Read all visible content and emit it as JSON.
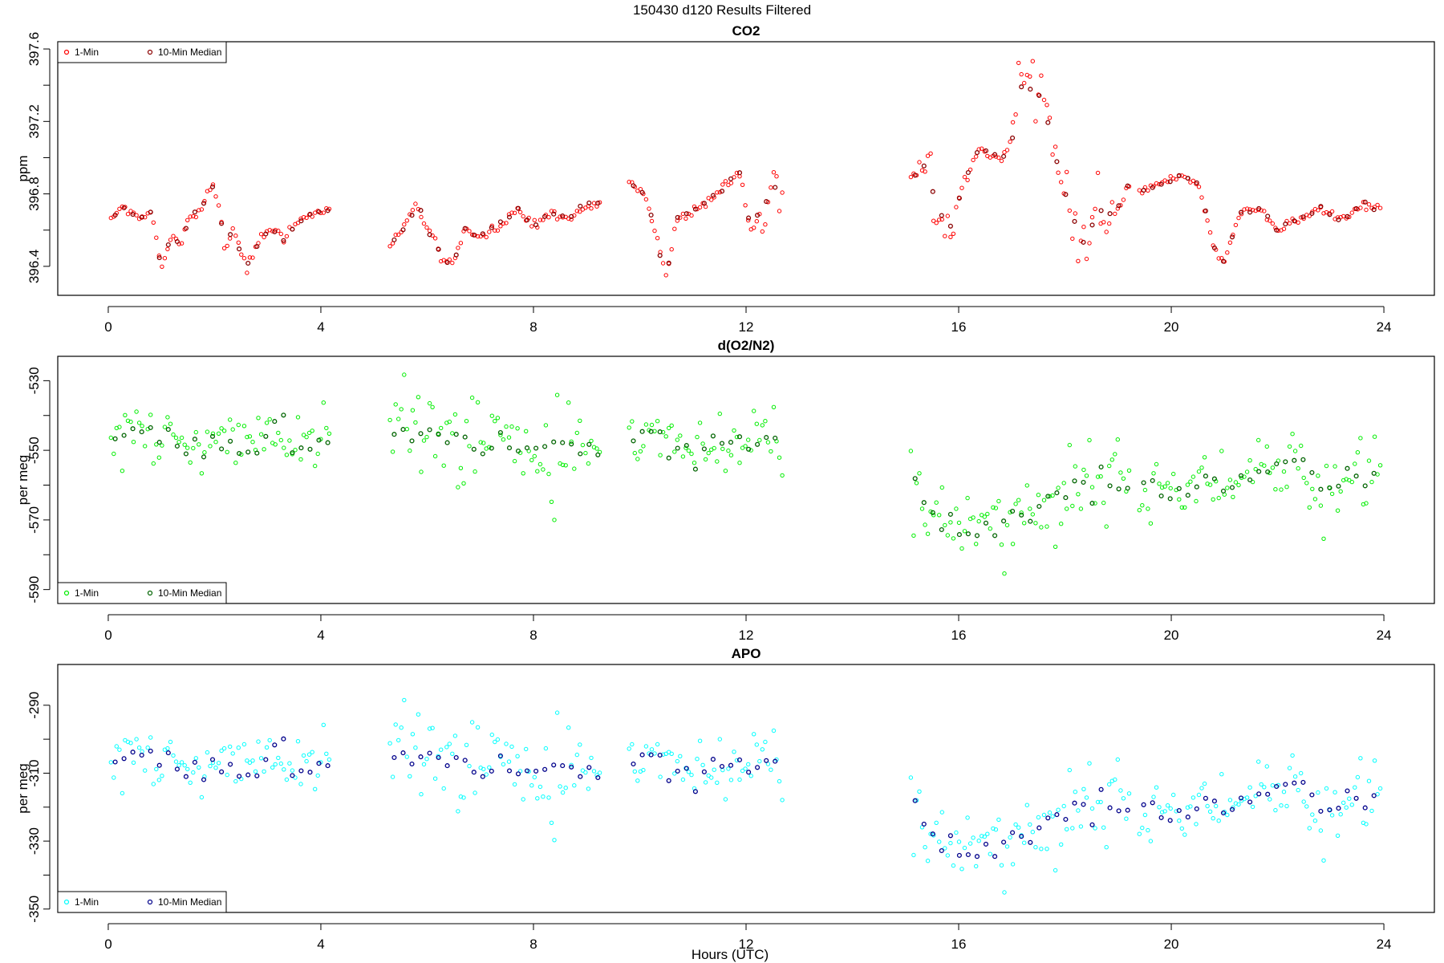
{
  "figure": {
    "title": "150430    d120    Results Filtered",
    "xlabel": "Hours (UTC)"
  },
  "chart_data": [
    {
      "type": "scatter",
      "title": "CO2",
      "ylabel": "ppm",
      "xlim": [
        -0.95,
        24.95
      ],
      "ylim": [
        396.24,
        397.64
      ],
      "xticks": [
        0,
        4,
        8,
        12,
        16,
        20,
        24
      ],
      "yticks": [
        396.4,
        396.8,
        397.2,
        397.6
      ],
      "ytick_labels": [
        "396.4",
        "396.8",
        "397.2",
        "397.6"
      ],
      "legend_position": "top-left",
      "series": [
        {
          "name": "1-Min",
          "color": "#ff0000",
          "marker": "open-circle",
          "x": [],
          "y": []
        },
        {
          "name": "10-Min Median",
          "color": "#8b0000",
          "marker": "open-circle",
          "x": [],
          "y": []
        }
      ]
    },
    {
      "type": "scatter",
      "title": "d(O2/N2)",
      "ylabel": "per meg",
      "xlim": [
        -0.95,
        24.95
      ],
      "ylim": [
        -594,
        -523
      ],
      "xticks": [
        0,
        4,
        8,
        12,
        16,
        20,
        24
      ],
      "yticks": [
        -590,
        -570,
        -550,
        -530
      ],
      "ytick_labels": [
        "-590",
        "-570",
        "-550",
        "-530"
      ],
      "legend_position": "bottom-left",
      "series": [
        {
          "name": "1-Min",
          "color": "#00ee00",
          "marker": "open-circle",
          "x": [],
          "y": []
        },
        {
          "name": "10-Min Median",
          "color": "#006400",
          "marker": "open-circle",
          "x": [],
          "y": []
        }
      ]
    },
    {
      "type": "scatter",
      "title": "APO",
      "ylabel": "per meg",
      "xlim": [
        -0.95,
        24.95
      ],
      "ylim": [
        -351,
        -278
      ],
      "xticks": [
        0,
        4,
        8,
        12,
        16,
        20,
        24
      ],
      "yticks": [
        -350,
        -330,
        -310,
        -290
      ],
      "ytick_labels": [
        "-350",
        "-330",
        "-310",
        "-290"
      ],
      "legend_position": "bottom-left",
      "series": [
        {
          "name": "1-Min",
          "color": "#00ffff",
          "marker": "open-circle",
          "x": [],
          "y": []
        },
        {
          "name": "10-Min Median",
          "color": "#00008b",
          "marker": "open-circle",
          "x": [],
          "y": []
        }
      ]
    }
  ]
}
